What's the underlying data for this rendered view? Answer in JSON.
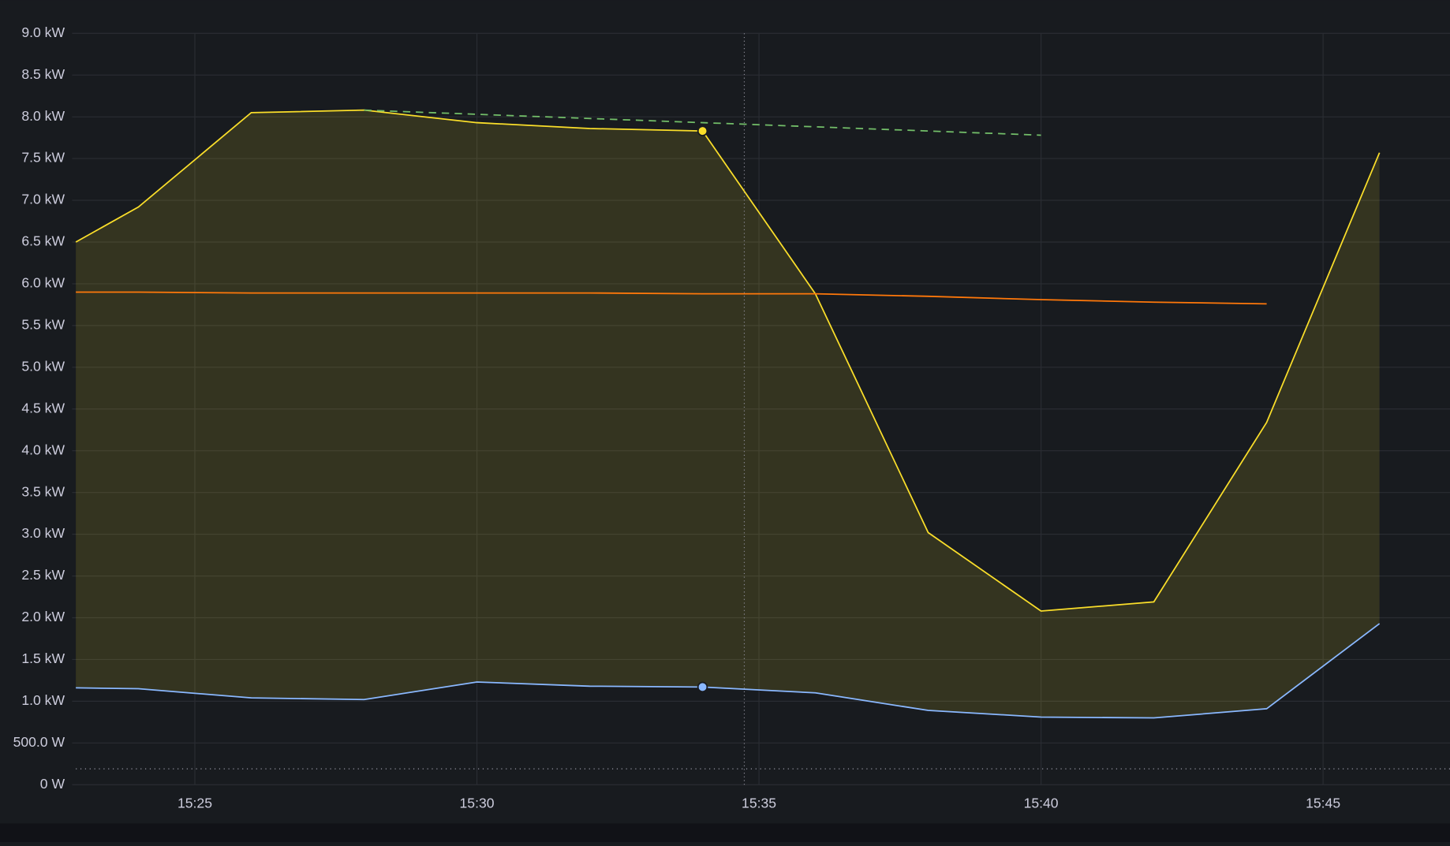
{
  "chart_data": {
    "type": "line",
    "xlim": [
      22.89,
      47.25
    ],
    "xticks": [
      {
        "value": 25,
        "label": "15:25"
      },
      {
        "value": 30,
        "label": "15:30"
      },
      {
        "value": 35,
        "label": "15:35"
      },
      {
        "value": 40,
        "label": "15:40"
      },
      {
        "value": 45,
        "label": "15:45"
      }
    ],
    "ylim": [
      0,
      9000
    ],
    "yticks": [
      {
        "value": 0,
        "label": "0 W"
      },
      {
        "value": 500,
        "label": "500.0 W"
      },
      {
        "value": 1000,
        "label": "1.0 kW"
      },
      {
        "value": 1500,
        "label": "1.5 kW"
      },
      {
        "value": 2000,
        "label": "2.0 kW"
      },
      {
        "value": 2500,
        "label": "2.5 kW"
      },
      {
        "value": 3000,
        "label": "3.0 kW"
      },
      {
        "value": 3500,
        "label": "3.5 kW"
      },
      {
        "value": 4000,
        "label": "4.0 kW"
      },
      {
        "value": 4500,
        "label": "4.5 kW"
      },
      {
        "value": 5000,
        "label": "5.0 kW"
      },
      {
        "value": 5500,
        "label": "5.5 kW"
      },
      {
        "value": 6000,
        "label": "6.0 kW"
      },
      {
        "value": 6500,
        "label": "6.5 kW"
      },
      {
        "value": 7000,
        "label": "7.0 kW"
      },
      {
        "value": 7500,
        "label": "7.5 kW"
      },
      {
        "value": 8000,
        "label": "8.0 kW"
      },
      {
        "value": 8500,
        "label": "8.5 kW"
      },
      {
        "value": 9000,
        "label": "9.0 kW"
      }
    ],
    "grid": true,
    "threshold": 190,
    "cursor_x": 34.74,
    "hover_index": 6,
    "series": [
      {
        "color": "#fade2a",
        "fill_to_series": 1,
        "x": [
          22.89,
          24,
          26,
          28,
          30,
          32,
          34,
          36,
          38,
          40,
          42,
          44,
          46
        ],
        "values": [
          6500,
          6920,
          8050,
          8080,
          7930,
          7860,
          7830,
          5880,
          3020,
          2080,
          2190,
          4340,
          7570
        ]
      },
      {
        "color": "#8ab8ff",
        "x": [
          22.89,
          24,
          26,
          28,
          30,
          32,
          34,
          36,
          38,
          40,
          42,
          44,
          46
        ],
        "values": [
          1160,
          1150,
          1040,
          1020,
          1230,
          1180,
          1170,
          1100,
          890,
          810,
          800,
          910,
          1930
        ]
      },
      {
        "color": "#ff780a",
        "x": [
          22.89,
          24,
          26,
          28,
          30,
          32,
          34,
          36,
          38,
          40,
          42,
          44
        ],
        "values": [
          5900,
          5900,
          5890,
          5890,
          5890,
          5890,
          5880,
          5880,
          5850,
          5810,
          5780,
          5760
        ]
      },
      {
        "color": "#73bf69",
        "dash": true,
        "x": [
          28,
          34,
          40
        ],
        "values": [
          8080,
          7930,
          7780
        ]
      }
    ]
  }
}
